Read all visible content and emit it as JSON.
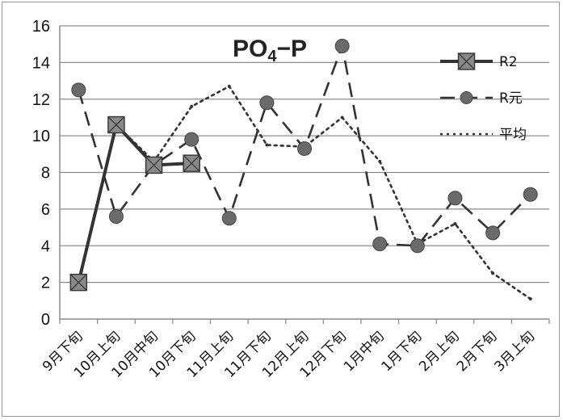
{
  "chart_data": {
    "type": "line",
    "title_main": "PO",
    "title_sub": "4",
    "title_tail": "−P",
    "categories": [
      "9月下旬",
      "10月上旬",
      "10月中旬",
      "10月下旬",
      "11月上旬",
      "11月下旬",
      "12月上旬",
      "12月下旬",
      "1月中旬",
      "1月下旬",
      "2月上旬",
      "2月下旬",
      "3月上旬"
    ],
    "ylim": [
      0,
      16
    ],
    "yticks": [
      "0",
      "2",
      "4",
      "6",
      "8",
      "10",
      "12",
      "14",
      "16"
    ],
    "grid": "horizontal",
    "legend_position": "top-right",
    "series": [
      {
        "name": "R2",
        "style": "solid-square",
        "color": "#333333",
        "values": [
          2.0,
          10.6,
          8.4,
          8.5,
          null,
          null,
          null,
          null,
          null,
          null,
          null,
          null,
          null
        ]
      },
      {
        "name": "R元",
        "style": "dashed-circle",
        "color": "#333333",
        "values": [
          12.5,
          5.6,
          8.4,
          9.8,
          5.5,
          11.8,
          9.3,
          14.9,
          4.1,
          4.0,
          6.6,
          4.7,
          6.8
        ]
      },
      {
        "name": "平均",
        "style": "dotted",
        "color": "#333333",
        "values": [
          null,
          10.6,
          8.6,
          11.6,
          12.7,
          9.5,
          9.4,
          11.0,
          8.6,
          4.1,
          5.2,
          2.5,
          1.1
        ]
      }
    ]
  }
}
